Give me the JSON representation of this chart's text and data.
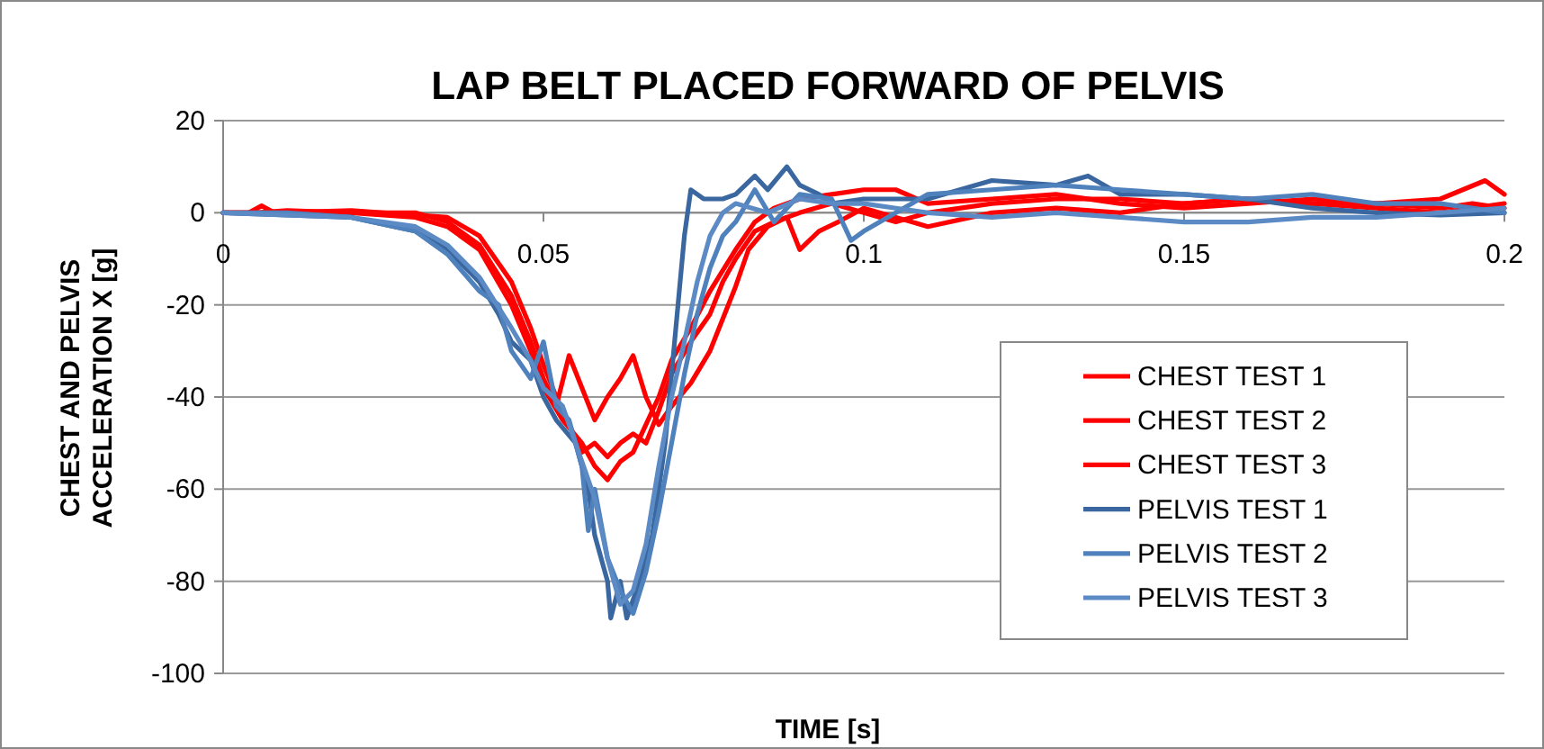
{
  "chart_data": {
    "type": "line",
    "title": "LAP BELT PLACED FORWARD OF PELVIS",
    "xlabel": "TIME [s]",
    "ylabel": "CHEST AND PELVIS ACCELERATION X [g]",
    "xlim": [
      0,
      0.2
    ],
    "xticks": [
      0,
      0.05,
      0.1,
      0.15,
      0.2
    ],
    "ylim": [
      -100,
      20
    ],
    "yticks": [
      -100,
      -80,
      -60,
      -40,
      -20,
      0,
      20
    ],
    "grid": "y",
    "legend": "right",
    "line_style": "solid",
    "marker": "none",
    "series": [
      {
        "name": "CHEST TEST 1",
        "color": "#ff0000",
        "x": [
          0,
          0.005,
          0.01,
          0.02,
          0.03,
          0.035,
          0.04,
          0.045,
          0.048,
          0.05,
          0.053,
          0.056,
          0.058,
          0.06,
          0.062,
          0.064,
          0.066,
          0.068,
          0.07,
          0.073,
          0.076,
          0.08,
          0.083,
          0.086,
          0.09,
          0.095,
          0.1,
          0.105,
          0.11,
          0.12,
          0.13,
          0.14,
          0.15,
          0.16,
          0.17,
          0.18,
          0.19,
          0.195,
          0.2
        ],
        "values": [
          0,
          0,
          0.5,
          0,
          -1,
          -3,
          -8,
          -20,
          -30,
          -38,
          -45,
          -50,
          -55,
          -58,
          -54,
          -52,
          -46,
          -40,
          -32,
          -25,
          -17,
          -8,
          -2,
          1,
          3,
          4,
          5,
          5,
          2,
          3,
          4,
          2,
          1,
          2,
          3,
          2,
          1,
          2,
          1
        ]
      },
      {
        "name": "CHEST TEST 2",
        "color": "#ff0000",
        "x": [
          0,
          0.01,
          0.02,
          0.03,
          0.035,
          0.04,
          0.045,
          0.048,
          0.05,
          0.052,
          0.054,
          0.056,
          0.058,
          0.06,
          0.062,
          0.064,
          0.066,
          0.068,
          0.07,
          0.073,
          0.076,
          0.08,
          0.082,
          0.085,
          0.088,
          0.09,
          0.093,
          0.096,
          0.1,
          0.11,
          0.12,
          0.13,
          0.14,
          0.15,
          0.16,
          0.17,
          0.18,
          0.19,
          0.197,
          0.2
        ],
        "values": [
          0,
          0,
          0,
          0,
          -2,
          -7,
          -18,
          -28,
          -36,
          -42,
          -31,
          -38,
          -45,
          -40,
          -36,
          -31,
          -40,
          -46,
          -42,
          -37,
          -30,
          -16,
          -8,
          -3,
          -1,
          -8,
          -4,
          -2,
          1,
          -3,
          0,
          1,
          0,
          2,
          3,
          2,
          2,
          3,
          7,
          4
        ]
      },
      {
        "name": "CHEST TEST 3",
        "color": "#ff0000",
        "x": [
          0,
          0.004,
          0.006,
          0.008,
          0.02,
          0.03,
          0.035,
          0.04,
          0.045,
          0.048,
          0.05,
          0.052,
          0.054,
          0.056,
          0.058,
          0.06,
          0.062,
          0.064,
          0.066,
          0.068,
          0.07,
          0.073,
          0.076,
          0.078,
          0.08,
          0.083,
          0.086,
          0.09,
          0.095,
          0.1,
          0.105,
          0.11,
          0.12,
          0.13,
          0.14,
          0.15,
          0.16,
          0.17,
          0.18,
          0.19,
          0.2
        ],
        "values": [
          0,
          0,
          1.5,
          0,
          0.5,
          -0.5,
          -1,
          -5,
          -15,
          -25,
          -33,
          -40,
          -46,
          -52,
          -50,
          -53,
          -50,
          -48,
          -50,
          -43,
          -35,
          -28,
          -22,
          -15,
          -10,
          -4,
          -2,
          0,
          2,
          0,
          -2,
          0,
          2,
          3,
          3,
          2,
          3,
          2,
          1,
          0,
          2
        ]
      },
      {
        "name": "PELVIS TEST 1",
        "color": "#3a679f",
        "x": [
          0,
          0.01,
          0.02,
          0.03,
          0.035,
          0.04,
          0.043,
          0.045,
          0.048,
          0.05,
          0.052,
          0.055,
          0.057,
          0.058,
          0.06,
          0.0605,
          0.062,
          0.063,
          0.065,
          0.067,
          0.069,
          0.07,
          0.071,
          0.072,
          0.073,
          0.075,
          0.078,
          0.08,
          0.083,
          0.085,
          0.088,
          0.09,
          0.093,
          0.095,
          0.1,
          0.11,
          0.12,
          0.13,
          0.135,
          0.14,
          0.15,
          0.16,
          0.17,
          0.18,
          0.19,
          0.2
        ],
        "values": [
          0,
          -0.5,
          -1,
          -4,
          -8,
          -15,
          -22,
          -28,
          -32,
          -40,
          -45,
          -50,
          -60,
          -70,
          -80,
          -88,
          -80,
          -88,
          -80,
          -70,
          -50,
          -35,
          -20,
          -5,
          5,
          3,
          3,
          4,
          8,
          5,
          10,
          6,
          4,
          2,
          3,
          3,
          7,
          6,
          8,
          4,
          4,
          3,
          1,
          0,
          -0.5,
          0
        ]
      },
      {
        "name": "PELVIS TEST 2",
        "color": "#4f81bd",
        "x": [
          0,
          0.01,
          0.02,
          0.03,
          0.035,
          0.04,
          0.043,
          0.045,
          0.048,
          0.05,
          0.052,
          0.054,
          0.056,
          0.057,
          0.058,
          0.06,
          0.062,
          0.064,
          0.066,
          0.068,
          0.07,
          0.072,
          0.074,
          0.076,
          0.078,
          0.08,
          0.083,
          0.086,
          0.09,
          0.095,
          0.098,
          0.1,
          0.105,
          0.11,
          0.12,
          0.13,
          0.14,
          0.15,
          0.16,
          0.17,
          0.18,
          0.19,
          0.2
        ],
        "values": [
          0,
          0,
          -1,
          -4,
          -9,
          -17,
          -20,
          -30,
          -36,
          -28,
          -42,
          -45,
          -55,
          -69,
          -60,
          -75,
          -82,
          -87,
          -78,
          -65,
          -50,
          -35,
          -22,
          -12,
          -5,
          -2,
          5,
          -2,
          4,
          3,
          -6,
          -4,
          0,
          4,
          5,
          6,
          5,
          4,
          3,
          4,
          2,
          2,
          0
        ]
      },
      {
        "name": "PELVIS TEST 3",
        "color": "#5b8ac4",
        "x": [
          0,
          0.01,
          0.02,
          0.03,
          0.035,
          0.04,
          0.045,
          0.048,
          0.05,
          0.053,
          0.055,
          0.058,
          0.06,
          0.062,
          0.064,
          0.066,
          0.068,
          0.07,
          0.072,
          0.074,
          0.076,
          0.078,
          0.08,
          0.085,
          0.09,
          0.095,
          0.1,
          0.105,
          0.11,
          0.12,
          0.13,
          0.14,
          0.15,
          0.16,
          0.17,
          0.18,
          0.19,
          0.2
        ],
        "values": [
          0,
          -0.5,
          -1,
          -3,
          -7,
          -14,
          -25,
          -32,
          -38,
          -42,
          -50,
          -62,
          -75,
          -85,
          -82,
          -72,
          -55,
          -40,
          -28,
          -15,
          -5,
          0,
          2,
          0,
          3,
          2,
          2,
          1,
          0,
          -1,
          0,
          -1,
          -2,
          -2,
          -1,
          -1,
          0,
          1
        ]
      }
    ]
  }
}
